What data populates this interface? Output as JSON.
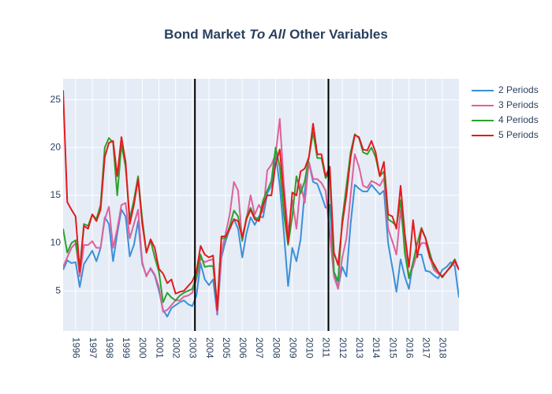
{
  "chart_data": {
    "type": "line",
    "title": [
      "Bond Market",
      "To All",
      "Other Variables"
    ],
    "title_italic": [
      false,
      true,
      false
    ],
    "x": [
      1995.25,
      1995.5,
      1995.75,
      1996,
      1996.25,
      1996.5,
      1996.75,
      1997,
      1997.25,
      1997.5,
      1997.75,
      1998,
      1998.25,
      1998.5,
      1998.75,
      1999,
      1999.25,
      1999.5,
      1999.75,
      2000,
      2000.25,
      2000.5,
      2000.75,
      2001,
      2001.25,
      2001.5,
      2001.75,
      2002,
      2002.25,
      2002.5,
      2002.75,
      2003,
      2003.25,
      2003.5,
      2003.75,
      2004,
      2004.25,
      2004.5,
      2004.75,
      2005,
      2005.25,
      2005.5,
      2005.75,
      2006,
      2006.25,
      2006.5,
      2006.75,
      2007,
      2007.25,
      2007.5,
      2007.75,
      2008,
      2008.25,
      2008.5,
      2008.75,
      2009,
      2009.25,
      2009.5,
      2009.75,
      2010,
      2010.25,
      2010.5,
      2010.75,
      2011,
      2011.25,
      2011.5,
      2011.75,
      2012,
      2012.25,
      2012.5,
      2012.75,
      2013,
      2013.25,
      2013.5,
      2013.75,
      2014,
      2014.25,
      2014.5,
      2014.75,
      2015,
      2015.25,
      2015.5,
      2015.75,
      2016,
      2016.25,
      2016.5,
      2016.75,
      2017,
      2017.25,
      2017.5,
      2017.75,
      2018,
      2018.25,
      2018.5,
      2018.75,
      2019
    ],
    "series": [
      {
        "name": "2 Periods",
        "color": "#3b8fd9",
        "values": [
          7.2,
          8.2,
          7.9,
          8,
          5.4,
          7.8,
          8.5,
          9.2,
          8.1,
          9.5,
          12.7,
          12,
          8.1,
          11,
          13.5,
          12.8,
          8.6,
          9.8,
          12.3,
          7.8,
          6.6,
          7.3,
          6.6,
          5,
          3,
          2.3,
          3.2,
          3.5,
          3.8,
          4,
          3.6,
          3.4,
          4.5,
          7.9,
          6.2,
          5.6,
          6.2,
          2.5,
          8.5,
          10.2,
          11.5,
          12.5,
          11.5,
          8.5,
          11,
          12.7,
          11.9,
          12.8,
          12.7,
          15.2,
          16,
          19.4,
          16,
          11,
          5.5,
          9.5,
          8.1,
          10.4,
          15.5,
          18.4,
          16.4,
          16.2,
          15,
          13.7,
          14,
          7,
          5.3,
          7.5,
          6.5,
          12,
          16.1,
          15.7,
          15.4,
          15.4,
          16.1,
          15.6,
          15.1,
          15.5,
          10,
          7.5,
          4.9,
          8.3,
          6.5,
          5.2,
          8,
          8.8,
          8.8,
          7.1,
          7,
          6.6,
          6.3,
          7.2,
          7.5,
          8,
          7.6,
          4.3
        ]
      },
      {
        "name": "3 Periods",
        "color": "#e0609a",
        "values": [
          7.5,
          8.5,
          9.5,
          10,
          6.5,
          9.8,
          9.8,
          10.2,
          9.5,
          9.5,
          12.5,
          13.8,
          9.5,
          11.5,
          14,
          14.2,
          10.5,
          12,
          13.5,
          8,
          6.5,
          7.4,
          6.7,
          5.4,
          2.8,
          3,
          3.5,
          4,
          4,
          4.4,
          4.5,
          4.8,
          6.2,
          8.4,
          8,
          8.2,
          8.3,
          2.7,
          9,
          11,
          13,
          16.4,
          15.5,
          10.2,
          12.5,
          15,
          13,
          14,
          13.2,
          17.6,
          18.2,
          19.3,
          23,
          16,
          11,
          14.5,
          11.5,
          16.2,
          14.2,
          18.5,
          16.7,
          16.7,
          16.3,
          15.5,
          11,
          6.5,
          5.2,
          8.5,
          10.5,
          15,
          19.3,
          18,
          16,
          15.8,
          16.5,
          16.3,
          16,
          16.8,
          11.5,
          10.2,
          8.8,
          13.5,
          10,
          6.5,
          7.5,
          9,
          10,
          10,
          8.5,
          7.2,
          6.8,
          6.5,
          7,
          7.5,
          8,
          7.2
        ]
      },
      {
        "name": "4 Periods",
        "color": "#2ca02c",
        "values": [
          11.5,
          9,
          10,
          10.3,
          7.3,
          12,
          11.8,
          13,
          12.5,
          14,
          20,
          21,
          20.5,
          15,
          20.3,
          18,
          12.5,
          14.5,
          17,
          12.5,
          9,
          10.3,
          8.5,
          7,
          3.8,
          4.8,
          4.3,
          4,
          4.5,
          4.8,
          5,
          5.2,
          6.5,
          8.8,
          7.5,
          7.6,
          7.6,
          3.5,
          10.5,
          10.5,
          11.8,
          13.4,
          12.8,
          10.3,
          12.7,
          13.7,
          12.7,
          12.5,
          14.5,
          15.5,
          16.5,
          20,
          18,
          13,
          9.8,
          12.8,
          17,
          15.2,
          16.5,
          19,
          21.6,
          18.9,
          18.9,
          16.8,
          17.5,
          7,
          6,
          12.5,
          16,
          19.5,
          21.4,
          21,
          19.5,
          19.3,
          20,
          19,
          17,
          17.5,
          12.5,
          12.2,
          11.8,
          14.5,
          9,
          6.3,
          8,
          10,
          11.6,
          10.5,
          9,
          7.5,
          7,
          6.4,
          7,
          7.6,
          8.3,
          7.2
        ]
      },
      {
        "name": "5 Periods",
        "color": "#e31a1c",
        "values": [
          26,
          14.3,
          13.5,
          12.8,
          7,
          11.8,
          11.5,
          13,
          12.3,
          13.5,
          19,
          20.5,
          20.7,
          17,
          21.1,
          18.5,
          12,
          14,
          16.7,
          12,
          9,
          10.4,
          9.5,
          7.3,
          6.8,
          5.8,
          6.2,
          4.7,
          4.9,
          5,
          5.5,
          6,
          7,
          9.7,
          8.8,
          8.5,
          8.7,
          3,
          10.7,
          10.7,
          11.5,
          12.5,
          12.3,
          10.6,
          12.5,
          13.5,
          12.5,
          12.3,
          14,
          15,
          15,
          18.3,
          19.8,
          15,
          10,
          15.3,
          15,
          17.5,
          17.8,
          19,
          22.5,
          19.3,
          19.3,
          17,
          18,
          9,
          7.7,
          12,
          15,
          19,
          21.3,
          21.1,
          19.8,
          19.7,
          20.7,
          19.5,
          17,
          18.5,
          13,
          12.8,
          11.5,
          16,
          11,
          7.5,
          12.4,
          8.5,
          11.5,
          10.5,
          8.5,
          7.8,
          7,
          6.5,
          7,
          7.5,
          8.2,
          7.2
        ]
      }
    ],
    "xlim": [
      1995.25,
      2019.0
    ],
    "xticks": [
      1996,
      1997,
      1998,
      1999,
      2000,
      2001,
      2002,
      2003,
      2004,
      2005,
      2006,
      2007,
      2008,
      2009,
      2010,
      2011,
      2012,
      2013,
      2014,
      2015,
      2016,
      2017,
      2018
    ],
    "ylim": [
      0.8,
      27.2
    ],
    "yticks": [
      5,
      10,
      15,
      20,
      25
    ],
    "vertical_lines": [
      2003.16,
      2011.17
    ],
    "vertical_line_color": "#000000",
    "grid": true,
    "legend_position": "right"
  }
}
